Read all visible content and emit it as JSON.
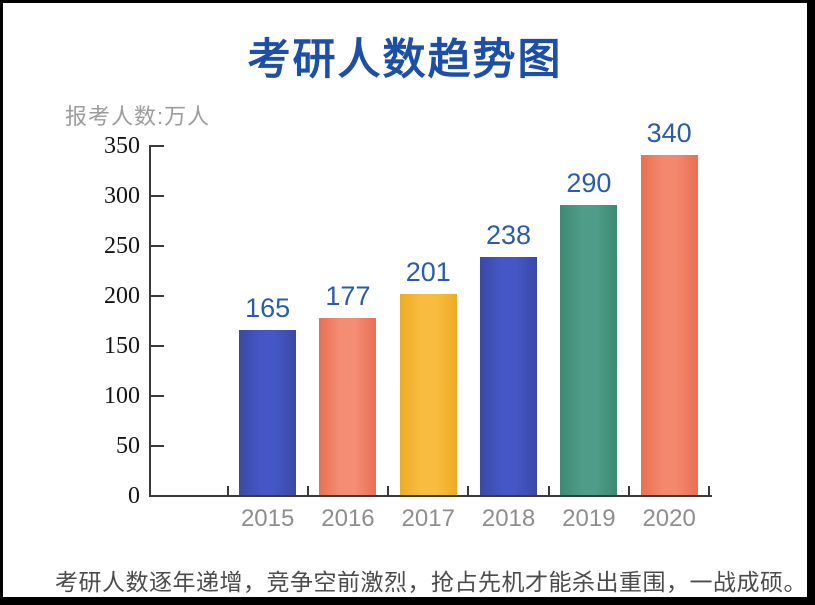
{
  "page": {
    "footer": "考研人数逐年递增，竞争空前激烈，抢占先机才能杀出重围，一战成硕。"
  },
  "colors": {
    "title": "#1d4fa9",
    "unit_label": "#9c9c9c",
    "value_label": "#2a5cab",
    "x_label": "#8e8e8e",
    "axis": "#3a3a3a",
    "footer": "#4b4b4b"
  },
  "chart_data": {
    "type": "bar",
    "title": "考研人数趋势图",
    "unit_label": "报考人数:万人",
    "xlabel": "",
    "ylabel": "报考人数:万人",
    "categories": [
      "2015",
      "2016",
      "2017",
      "2018",
      "2019",
      "2020"
    ],
    "values": [
      165,
      177,
      201,
      238,
      290,
      340
    ],
    "yticks": [
      0,
      50,
      100,
      150,
      200,
      250,
      300,
      350
    ],
    "ylim": [
      0,
      350
    ],
    "grid": "off",
    "legend": "none",
    "bar_colors": [
      {
        "main": "#4557c7",
        "edge": "#3949a4"
      },
      {
        "main": "#f48d74",
        "edge": "#e96f55"
      },
      {
        "main": "#f8bd40",
        "edge": "#edab24"
      },
      {
        "main": "#4557c7",
        "edge": "#3949a4"
      },
      {
        "main": "#4f9d88",
        "edge": "#3d8a72"
      },
      {
        "main": "#f4886c",
        "edge": "#e96f52"
      }
    ]
  }
}
